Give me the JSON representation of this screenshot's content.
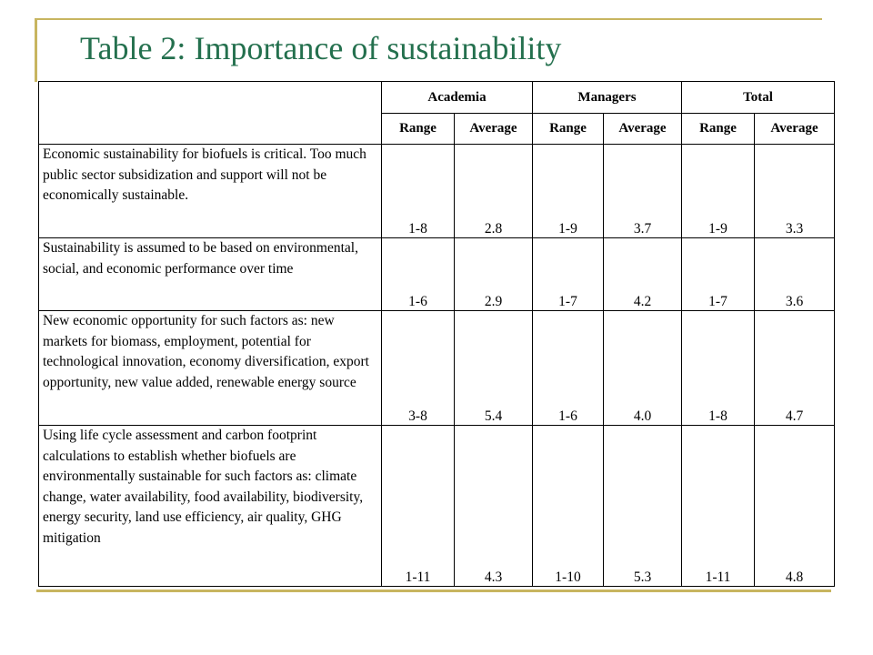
{
  "title": "Table 2: Importance of sustainability",
  "colors": {
    "title": "#24704e",
    "frame": "#c8b560"
  },
  "table": {
    "groups": [
      "Academia",
      "Managers",
      "Total"
    ],
    "subheaders": [
      "Range",
      "Average",
      "Range",
      "Average",
      "Range",
      "Average"
    ],
    "rows": [
      {
        "statement": "Economic sustainability for biofuels is critical. Too much public sector subsidization and support will not be economically sustainable.",
        "values": [
          "1-8",
          "2.8",
          "1-9",
          "3.7",
          "1-9",
          "3.3"
        ]
      },
      {
        "statement": "Sustainability is assumed to be based on environmental, social, and economic performance over time",
        "values": [
          "1-6",
          "2.9",
          "1-7",
          "4.2",
          "1-7",
          "3.6"
        ]
      },
      {
        "statement": "New economic opportunity for such factors as: new markets for biomass, employment, potential for technological innovation, economy diversification, export opportunity, new value added, renewable energy source",
        "values": [
          "3-8",
          "5.4",
          "1-6",
          "4.0",
          "1-8",
          "4.7"
        ]
      },
      {
        "statement": "Using life cycle assessment and carbon footprint calculations to establish whether biofuels are environmentally sustainable for such factors as: climate change, water availability, food availability, biodiversity, energy security, land use efficiency, air quality, GHG mitigation",
        "values": [
          "1-11",
          "4.3",
          "1-10",
          "5.3",
          "1-11",
          "4.8"
        ]
      }
    ]
  }
}
